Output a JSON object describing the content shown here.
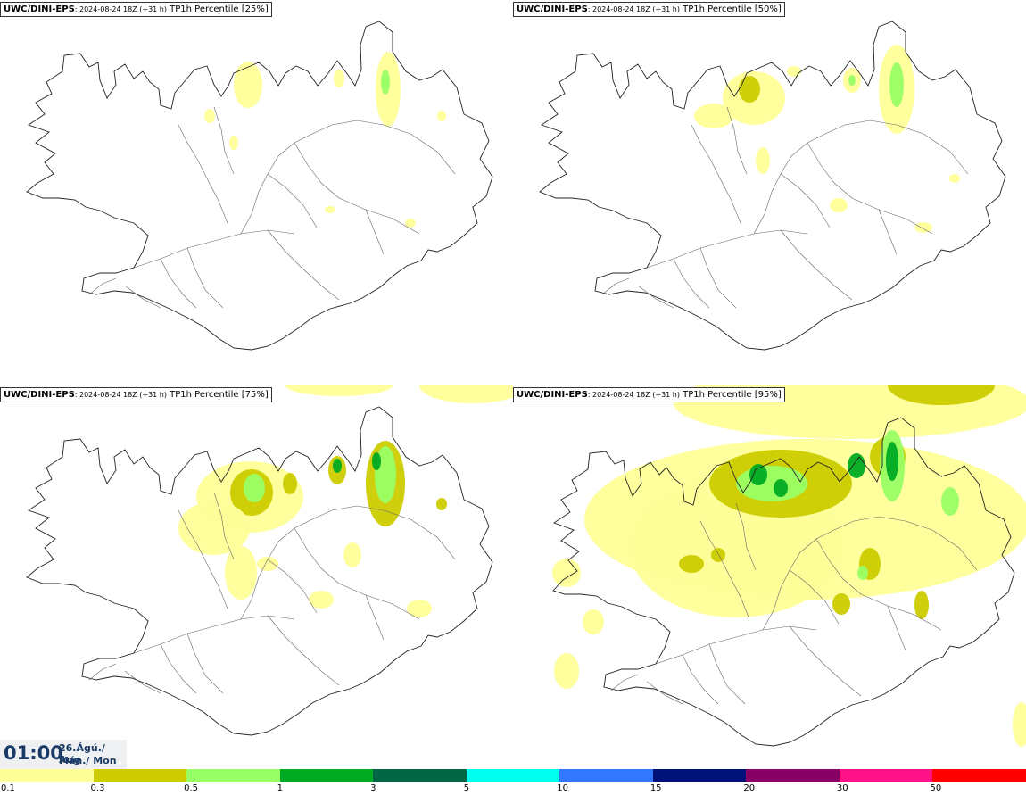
{
  "panels": [
    {
      "model": "UWC/DINI-EPS",
      "run": ": 2024-08-24 18Z (+31 h)",
      "field": " TP1h Percentile [25%]",
      "level": 1
    },
    {
      "model": "UWC/DINI-EPS",
      "run": ": 2024-08-24 18Z (+31 h)",
      "field": " TP1h Percentile [50%]",
      "level": 2
    },
    {
      "model": "UWC/DINI-EPS",
      "run": ": 2024-08-24 18Z (+31 h)",
      "field": " TP1h Percentile [75%]",
      "level": 3
    },
    {
      "model": "UWC/DINI-EPS",
      "run": ": 2024-08-24 18Z (+31 h)",
      "field": " TP1h Percentile [95%]",
      "level": 4
    }
  ],
  "time": {
    "clock": "01:00",
    "date_line1": "26.Ágú./ Aug",
    "date_line2": "Mán./ Mon"
  },
  "legend": {
    "labels": [
      "0.1",
      "0.3",
      "0.5",
      "1",
      "3",
      "5",
      "10",
      "15",
      "20",
      "30",
      "50"
    ],
    "colors": [
      "#ffff99",
      "#cccc00",
      "#99ff66",
      "#00aa22",
      "#006644",
      "#00ffee",
      "#3377ff",
      "#001177",
      "#880066",
      "#ff1188",
      "#ff0000"
    ]
  }
}
